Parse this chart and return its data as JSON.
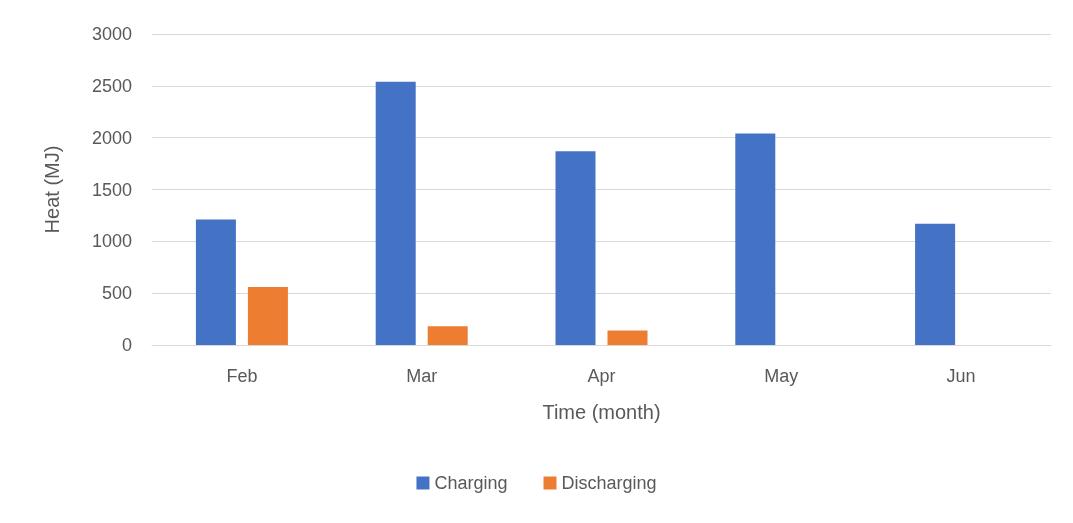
{
  "chart_data": {
    "type": "bar",
    "xlabel": "Time (month)",
    "ylabel": "Heat (MJ)",
    "categories": [
      "Feb",
      "Mar",
      "Apr",
      "May",
      "Jun"
    ],
    "series": [
      {
        "name": "Charging",
        "color": "#4472c4",
        "values": [
          1210,
          2540,
          1870,
          2040,
          1170
        ]
      },
      {
        "name": "Discharging",
        "color": "#ed7d31",
        "values": [
          560,
          180,
          140,
          0,
          0
        ]
      }
    ],
    "ylim": [
      0,
      3000
    ],
    "yticks": [
      0,
      500,
      1000,
      1500,
      2000,
      2500,
      3000
    ],
    "grid": "y",
    "legend": "bottom"
  }
}
